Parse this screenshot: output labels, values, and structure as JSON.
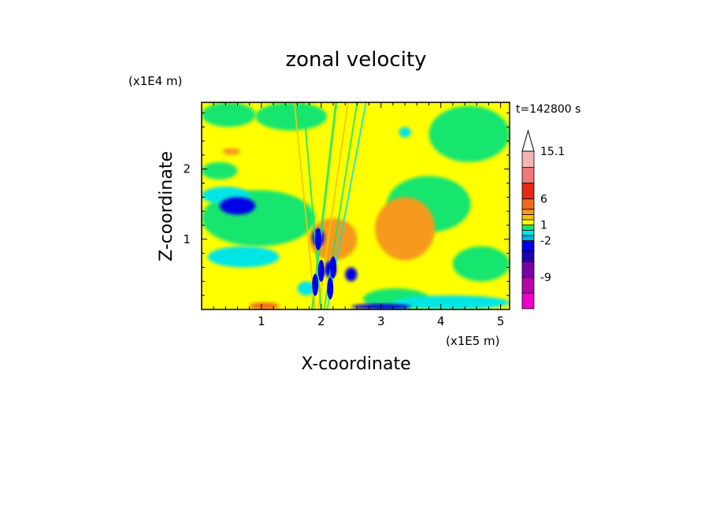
{
  "chart_data": {
    "type": "heatmap",
    "title": "zonal velocity",
    "xlabel": "X-coordinate",
    "ylabel": "Z-coordinate",
    "x_scale_label": "(x1E5 m)",
    "y_scale_label": "(x1E4 m)",
    "time_label": "t=142800 s",
    "xlim": [
      0,
      5.15
    ],
    "ylim": [
      0,
      2.95
    ],
    "x_ticks": [
      1,
      2,
      3,
      4,
      5
    ],
    "y_ticks": [
      1,
      2
    ],
    "colorbar": {
      "levels": [
        {
          "lo": -15,
          "hi": -12,
          "color": "#ee00cc"
        },
        {
          "lo": -12,
          "hi": -9,
          "color": "#bb00aa"
        },
        {
          "lo": -9,
          "hi": -6,
          "color": "#7a00a8"
        },
        {
          "lo": -6,
          "hi": -4,
          "color": "#1f00b0"
        },
        {
          "lo": -4,
          "hi": -2,
          "color": "#0000e6"
        },
        {
          "lo": -2,
          "hi": -1,
          "color": "#00b4e6"
        },
        {
          "lo": -1,
          "hi": 0,
          "color": "#00e6e6"
        },
        {
          "lo": 0,
          "hi": 1,
          "color": "#19e66e"
        },
        {
          "lo": 1,
          "hi": 2,
          "color": "#ffff00"
        },
        {
          "lo": 2,
          "hi": 3,
          "color": "#f5c400"
        },
        {
          "lo": 3,
          "hi": 4,
          "color": "#f59a1e"
        },
        {
          "lo": 4,
          "hi": 6,
          "color": "#f06a1e"
        },
        {
          "lo": 6,
          "hi": 9,
          "color": "#e62814"
        },
        {
          "lo": 9,
          "hi": 12,
          "color": "#f07878"
        },
        {
          "lo": 12,
          "hi": 15.1,
          "color": "#f5b4b4"
        }
      ],
      "labels": [
        "15.1",
        "6",
        "1",
        "-2",
        "-9"
      ],
      "label_values": [
        15.1,
        6,
        1,
        -2,
        -9
      ],
      "max_value": 15.1
    },
    "fields": {
      "background": {
        "value": 1.5,
        "color": "#ffff00"
      },
      "green_bands": [
        {
          "x": [
            0.0,
            0.9
          ],
          "z": [
            2.6,
            2.95
          ],
          "value": 0.5
        },
        {
          "x": [
            0.9,
            2.1
          ],
          "z": [
            2.55,
            2.95
          ],
          "value": 0.5
        },
        {
          "x": [
            0.0,
            0.6
          ],
          "z": [
            1.85,
            2.1
          ],
          "value": 0.5
        },
        {
          "x": [
            0.0,
            1.9
          ],
          "z": [
            0.9,
            1.7
          ],
          "value": 0.5
        },
        {
          "x": [
            3.1,
            4.5
          ],
          "z": [
            1.1,
            1.9
          ],
          "value": 0.5
        },
        {
          "x": [
            4.2,
            5.15
          ],
          "z": [
            0.4,
            0.9
          ],
          "value": 0.5
        },
        {
          "x": [
            2.7,
            3.8
          ],
          "z": [
            0.0,
            0.3
          ],
          "value": 0.5
        },
        {
          "x": [
            3.8,
            5.15
          ],
          "z": [
            2.1,
            2.9
          ],
          "value": 0.5
        }
      ],
      "cyan_patches": [
        {
          "x": [
            0.0,
            0.8
          ],
          "z": [
            1.5,
            1.75
          ],
          "value": -0.5
        },
        {
          "x": [
            0.1,
            1.3
          ],
          "z": [
            0.6,
            0.9
          ],
          "value": -0.5
        },
        {
          "x": [
            3.3,
            3.5
          ],
          "z": [
            2.45,
            2.6
          ],
          "value": -0.5
        },
        {
          "x": [
            3.2,
            5.15
          ],
          "z": [
            0.0,
            0.2
          ],
          "value": -0.5
        },
        {
          "x": [
            1.6,
            1.9
          ],
          "z": [
            0.2,
            0.4
          ],
          "value": -0.5
        }
      ],
      "blue_patches": [
        {
          "x": [
            0.3,
            0.9
          ],
          "z": [
            1.35,
            1.6
          ],
          "value": -3
        },
        {
          "x": [
            2.4,
            2.6
          ],
          "z": [
            0.4,
            0.6
          ],
          "value": -3
        },
        {
          "x": [
            1.85,
            2.05
          ],
          "z": [
            0.9,
            1.15
          ],
          "value": -3
        },
        {
          "x": [
            2.5,
            3.5
          ],
          "z": [
            0.0,
            0.08
          ],
          "value": -3
        },
        {
          "x": [
            2.05,
            2.25
          ],
          "z": [
            0.45,
            0.7
          ],
          "value": -3
        }
      ],
      "orange_patches": [
        {
          "x": [
            2.9,
            3.9
          ],
          "z": [
            0.7,
            1.6
          ],
          "value": 3
        },
        {
          "x": [
            0.35,
            0.65
          ],
          "z": [
            2.2,
            2.3
          ],
          "value": 3
        },
        {
          "x": [
            1.8,
            2.6
          ],
          "z": [
            0.7,
            1.3
          ],
          "value": 3
        },
        {
          "x": [
            0.8,
            1.3
          ],
          "z": [
            0.0,
            0.1
          ],
          "value": 4
        }
      ]
    }
  }
}
